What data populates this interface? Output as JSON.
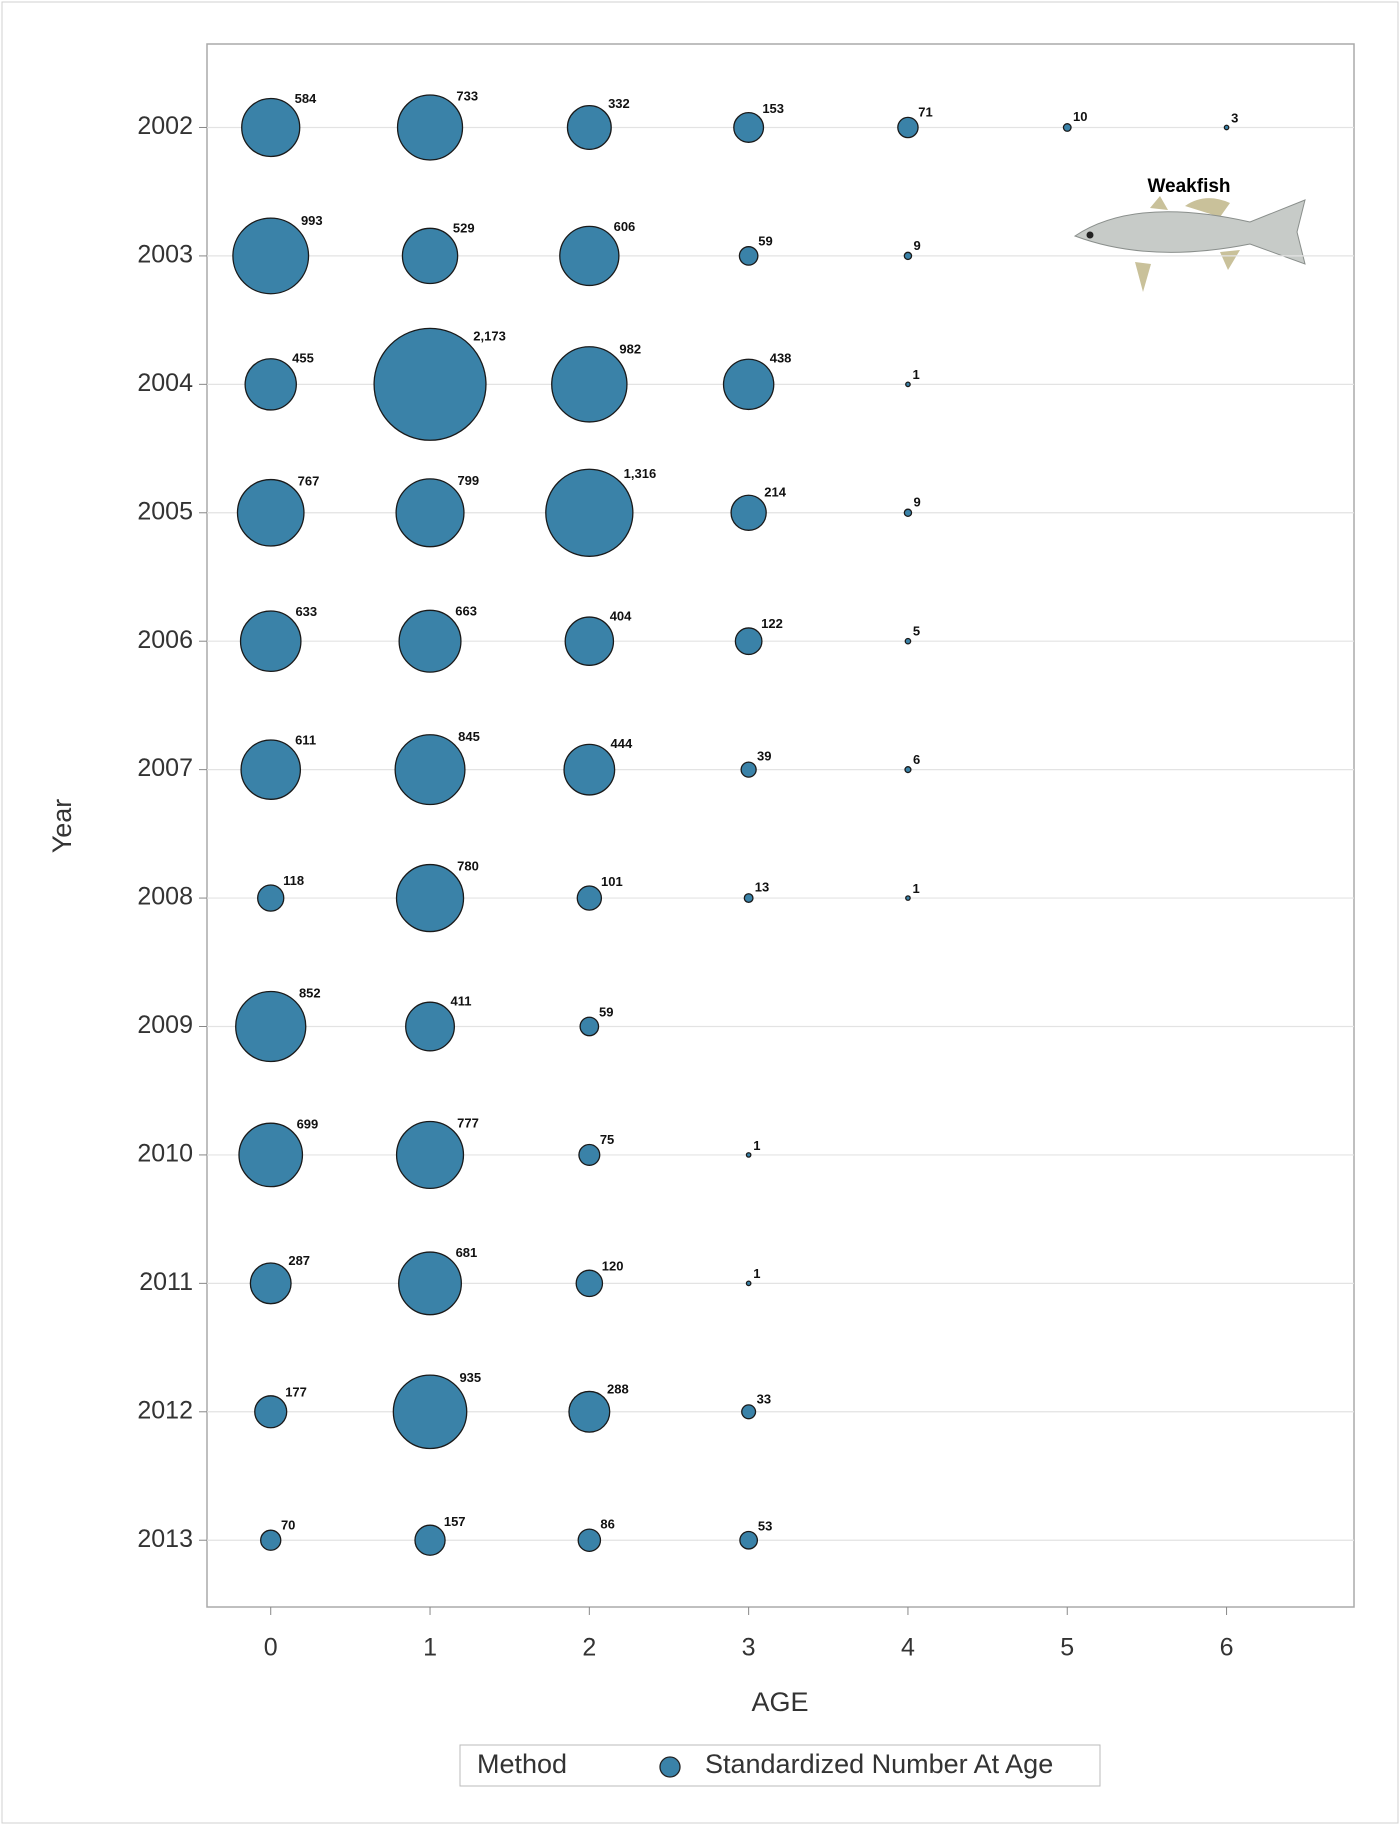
{
  "chart_data": {
    "type": "bubble",
    "xlabel": "AGE",
    "ylabel": "Year",
    "xlim": [
      -0.4,
      6.8
    ],
    "xticks": [
      0,
      1,
      2,
      3,
      4,
      5,
      6
    ],
    "ylim": [
      2001.35,
      2013.52
    ],
    "y_reversed": true,
    "yticks": [
      2002,
      2003,
      2004,
      2005,
      2006,
      2007,
      2008,
      2009,
      2010,
      2011,
      2012,
      2013
    ],
    "grid": true,
    "legend_title": "Method",
    "annotation": "Weakfish",
    "series": [
      {
        "name": "Standardized Number At Age",
        "color": "#3a82a8",
        "x": [
          0,
          1,
          2,
          3,
          4,
          5,
          6,
          0,
          1,
          2,
          3,
          4,
          0,
          1,
          2,
          3,
          4,
          0,
          1,
          2,
          3,
          4,
          0,
          1,
          2,
          3,
          4,
          0,
          1,
          2,
          3,
          4,
          0,
          1,
          2,
          3,
          4,
          0,
          1,
          2,
          0,
          1,
          2,
          3,
          0,
          1,
          2,
          3,
          0,
          1,
          2,
          3,
          0,
          1,
          2,
          3
        ],
        "y": [
          2002,
          2002,
          2002,
          2002,
          2002,
          2002,
          2002,
          2003,
          2003,
          2003,
          2003,
          2003,
          2004,
          2004,
          2004,
          2004,
          2004,
          2005,
          2005,
          2005,
          2005,
          2005,
          2006,
          2006,
          2006,
          2006,
          2006,
          2007,
          2007,
          2007,
          2007,
          2007,
          2008,
          2008,
          2008,
          2008,
          2008,
          2009,
          2009,
          2009,
          2010,
          2010,
          2010,
          2010,
          2011,
          2011,
          2011,
          2011,
          2012,
          2012,
          2012,
          2012,
          2013,
          2013,
          2013,
          2013
        ],
        "sizes": [
          584,
          733,
          332,
          153,
          71,
          10,
          3,
          993,
          529,
          606,
          59,
          9,
          455,
          2173,
          982,
          438,
          1,
          767,
          799,
          1316,
          214,
          9,
          633,
          663,
          404,
          122,
          5,
          611,
          845,
          444,
          39,
          6,
          118,
          780,
          101,
          13,
          1,
          852,
          411,
          59,
          699,
          777,
          75,
          1,
          287,
          681,
          120,
          1,
          177,
          935,
          288,
          33,
          70,
          157,
          86,
          53
        ],
        "value_labels": [
          "584",
          "733",
          "332",
          "153",
          "71",
          "10",
          "3",
          "993",
          "529",
          "606",
          "59",
          "9",
          "455",
          "2,173",
          "982",
          "438",
          "1",
          "767",
          "799",
          "1,316",
          "214",
          "9",
          "633",
          "663",
          "404",
          "122",
          "5",
          "611",
          "845",
          "444",
          "39",
          "6",
          "118",
          "780",
          "101",
          "13",
          "1",
          "852",
          "411",
          "59",
          "699",
          "777",
          "75",
          "1",
          "287",
          "681",
          "120",
          "1",
          "177",
          "935",
          "288",
          "33",
          "70",
          "157",
          "86",
          "53"
        ]
      }
    ]
  }
}
